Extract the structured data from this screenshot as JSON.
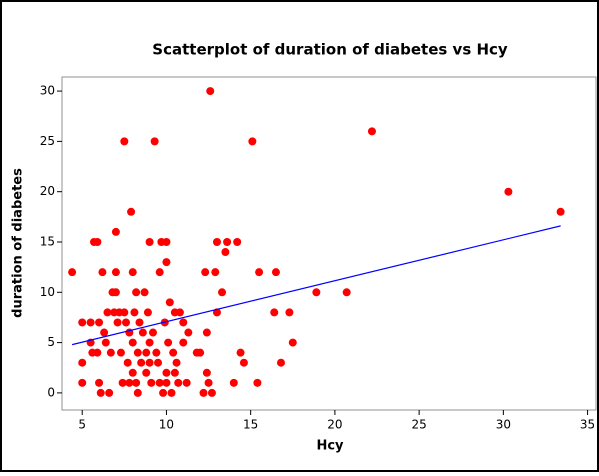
{
  "chart_data": {
    "type": "scatter",
    "title": "Scatterplot of duration of diabetes vs Hcy",
    "x_label": "Hcy",
    "y_label": "duration of diabetes",
    "color": "#ff0000",
    "x": [
      4.4,
      5,
      5,
      5,
      5.5,
      5.5,
      5.6,
      5.7,
      5.9,
      5.9,
      6,
      6,
      6.1,
      6.2,
      6.3,
      6.4,
      6.5,
      6.6,
      6.7,
      6.8,
      6.9,
      7,
      7,
      7,
      7.1,
      7.2,
      7.3,
      7.4,
      7.5,
      7.5,
      7.6,
      7.7,
      7.8,
      7.8,
      7.9,
      8,
      8,
      8,
      8.1,
      8.2,
      8.2,
      8.3,
      8.3,
      8.4,
      8.5,
      8.6,
      8.7,
      8.8,
      8.8,
      8.9,
      9,
      9,
      9,
      9.1,
      9.2,
      9.3,
      9.4,
      9.5,
      9.6,
      9.6,
      9.7,
      9.8,
      9.9,
      10,
      10,
      10,
      10,
      10.1,
      10.2,
      10.3,
      10.4,
      10.5,
      10.5,
      10.6,
      10.7,
      10.8,
      11,
      11,
      11.2,
      11.3,
      11.8,
      12,
      12.2,
      12.3,
      12.4,
      12.4,
      12.5,
      12.6,
      12.7,
      12.9,
      13,
      13,
      13.3,
      13.5,
      13.6,
      14,
      14.2,
      14.4,
      14.6,
      15.1,
      15.4,
      15.5,
      16.5,
      16.4,
      16.8,
      17.3,
      17.5,
      18.9,
      20.7,
      22.2,
      30.3,
      33.4
    ],
    "values": [
      12,
      7,
      3,
      1,
      7,
      5,
      4,
      15,
      15,
      4,
      7,
      1,
      0,
      12,
      6,
      5,
      8,
      0,
      4,
      10,
      8,
      12,
      10,
      16,
      7,
      8,
      4,
      1,
      25,
      8,
      7,
      3,
      6,
      1,
      18,
      12,
      5,
      2,
      8,
      10,
      1,
      4,
      0,
      7,
      3,
      6,
      10,
      4,
      2,
      8,
      15,
      5,
      3,
      1,
      6,
      25,
      4,
      3,
      12,
      1,
      15,
      0,
      7,
      15,
      13,
      2,
      1,
      5,
      9,
      0,
      4,
      8,
      2,
      3,
      1,
      8,
      7,
      5,
      1,
      6,
      4,
      4,
      0,
      12,
      6,
      2,
      1,
      30,
      0,
      12,
      15,
      8,
      10,
      14,
      15,
      1,
      15,
      4,
      3,
      25,
      1,
      12,
      12,
      8,
      3,
      8,
      5,
      10,
      10,
      26,
      20,
      18
    ],
    "fit": {
      "color": "#0000ff",
      "x": [
        4.4,
        33.4
      ],
      "values": [
        4.8,
        16.6
      ]
    },
    "xlim": [
      3.8,
      35.5
    ],
    "ylim": [
      -1.7,
      31.4
    ],
    "xticks": [
      5,
      10,
      15,
      20,
      25,
      30,
      35
    ],
    "yticks": [
      0,
      5,
      10,
      15,
      20,
      25,
      30
    ]
  }
}
